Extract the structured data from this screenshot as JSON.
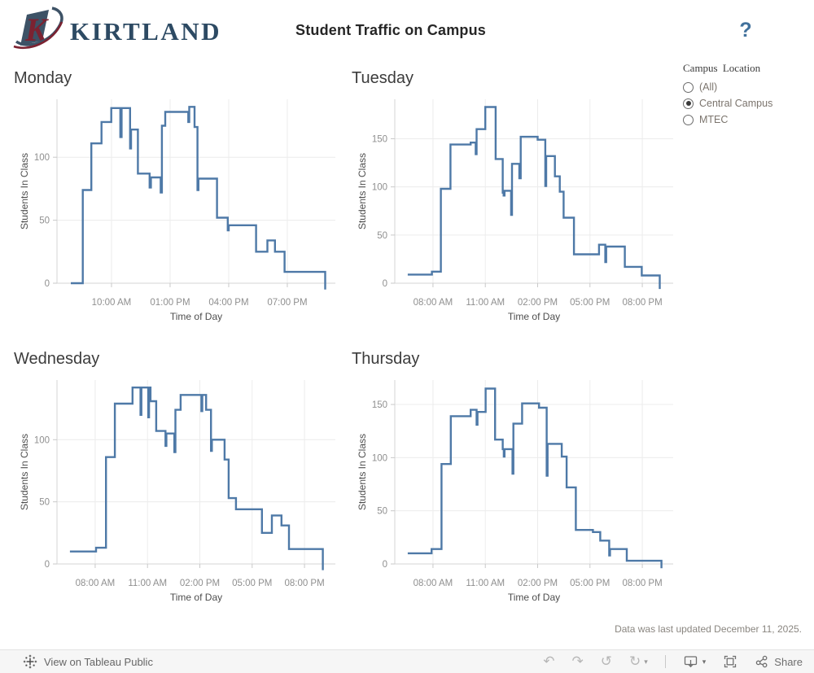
{
  "header": {
    "logo_text": "KIRTLAND",
    "title": "Student Traffic on Campus",
    "help_icon": "?"
  },
  "filter": {
    "title": "Campus Location",
    "options": [
      {
        "label": "(All)",
        "selected": false
      },
      {
        "label": "Central Campus",
        "selected": true
      },
      {
        "label": "MTEC",
        "selected": false
      }
    ]
  },
  "footer": {
    "updated_note": "Data was last updated December 11, 2025.",
    "view_on_label": "View on Tableau Public",
    "share_label": "Share"
  },
  "colors": {
    "line": "#4e79a7",
    "accent_blue": "#41719c",
    "logo_navy": "#33506a",
    "logo_maroon": "#7c2231",
    "grid": "#ececec",
    "axis": "#d6d6d6",
    "tick_label": "#8f8f8f"
  },
  "chart_data": [
    {
      "type": "line",
      "interpolation": "step-after",
      "title": "Monday",
      "xlabel": "Time of Day",
      "ylabel": "Students In Class",
      "x_ticks": [
        {
          "hour": 10,
          "label": "10:00 AM"
        },
        {
          "hour": 13,
          "label": "01:00 PM"
        },
        {
          "hour": 16,
          "label": "04:00 PM"
        },
        {
          "hour": 19,
          "label": "07:00 PM"
        }
      ],
      "y_ticks": [
        0,
        50,
        100
      ],
      "x_domain_hours": [
        7.21,
        21.46
      ],
      "y_max": 146,
      "points_hour_students": [
        [
          7.92,
          0
        ],
        [
          8.53,
          74
        ],
        [
          8.97,
          111
        ],
        [
          9.49,
          128
        ],
        [
          9.99,
          139
        ],
        [
          10.45,
          116
        ],
        [
          10.52,
          139
        ],
        [
          10.95,
          107
        ],
        [
          11.0,
          122
        ],
        [
          11.35,
          87
        ],
        [
          11.95,
          76
        ],
        [
          12.02,
          84
        ],
        [
          12.52,
          72
        ],
        [
          12.58,
          125
        ],
        [
          12.75,
          136
        ],
        [
          13.93,
          128
        ],
        [
          13.98,
          140
        ],
        [
          14.25,
          124
        ],
        [
          14.4,
          74
        ],
        [
          14.45,
          83
        ],
        [
          15.4,
          52
        ],
        [
          15.95,
          42
        ],
        [
          16.0,
          46
        ],
        [
          17.4,
          25
        ],
        [
          17.98,
          34
        ],
        [
          18.37,
          25
        ],
        [
          18.86,
          9
        ],
        [
          20.94,
          -5
        ]
      ]
    },
    {
      "type": "line",
      "interpolation": "step-after",
      "title": "Tuesday",
      "xlabel": "Time of Day",
      "ylabel": "Students In Class",
      "x_ticks": [
        {
          "hour": 8,
          "label": "08:00 AM"
        },
        {
          "hour": 11,
          "label": "11:00 AM"
        },
        {
          "hour": 14,
          "label": "02:00 PM"
        },
        {
          "hour": 17,
          "label": "05:00 PM"
        },
        {
          "hour": 20,
          "label": "08:00 PM"
        }
      ],
      "y_ticks": [
        0,
        50,
        100,
        150
      ],
      "x_domain_hours": [
        5.81,
        21.77
      ],
      "y_max": 191,
      "points_hour_students": [
        [
          6.55,
          9
        ],
        [
          7.94,
          12
        ],
        [
          8.45,
          98
        ],
        [
          9.0,
          144
        ],
        [
          10.16,
          146
        ],
        [
          10.45,
          134
        ],
        [
          10.5,
          160
        ],
        [
          11.0,
          183
        ],
        [
          11.59,
          129
        ],
        [
          12.0,
          94
        ],
        [
          12.05,
          91
        ],
        [
          12.1,
          96
        ],
        [
          12.48,
          71
        ],
        [
          12.53,
          124
        ],
        [
          12.95,
          109
        ],
        [
          13.03,
          152
        ],
        [
          14.0,
          149
        ],
        [
          14.44,
          101
        ],
        [
          14.49,
          132
        ],
        [
          14.99,
          111
        ],
        [
          15.27,
          95
        ],
        [
          15.49,
          68
        ],
        [
          16.08,
          30
        ],
        [
          17.52,
          40
        ],
        [
          17.88,
          22
        ],
        [
          17.93,
          38
        ],
        [
          19.0,
          17
        ],
        [
          19.97,
          8
        ],
        [
          21.0,
          -6
        ]
      ]
    },
    {
      "type": "line",
      "interpolation": "step-after",
      "title": "Wednesday",
      "xlabel": "Time of Day",
      "ylabel": "Students In Class",
      "x_ticks": [
        {
          "hour": 8,
          "label": "08:00 AM"
        },
        {
          "hour": 11,
          "label": "11:00 AM"
        },
        {
          "hour": 14,
          "label": "02:00 PM"
        },
        {
          "hour": 17,
          "label": "05:00 PM"
        },
        {
          "hour": 20,
          "label": "08:00 PM"
        }
      ],
      "y_ticks": [
        0,
        50,
        100
      ],
      "x_domain_hours": [
        5.81,
        21.77
      ],
      "y_max": 148,
      "points_hour_students": [
        [
          6.55,
          10
        ],
        [
          8.05,
          13
        ],
        [
          8.62,
          86
        ],
        [
          9.13,
          129
        ],
        [
          10.14,
          142
        ],
        [
          10.6,
          120
        ],
        [
          10.65,
          142
        ],
        [
          11.04,
          118
        ],
        [
          11.09,
          142
        ],
        [
          11.17,
          131
        ],
        [
          11.5,
          107
        ],
        [
          12.03,
          95
        ],
        [
          12.08,
          105
        ],
        [
          12.54,
          90
        ],
        [
          12.6,
          124
        ],
        [
          12.9,
          136
        ],
        [
          14.09,
          123
        ],
        [
          14.14,
          136
        ],
        [
          14.36,
          124
        ],
        [
          14.64,
          91
        ],
        [
          14.69,
          100
        ],
        [
          15.42,
          84
        ],
        [
          15.65,
          53
        ],
        [
          16.07,
          44
        ],
        [
          17.56,
          25
        ],
        [
          18.13,
          39
        ],
        [
          18.68,
          31
        ],
        [
          19.11,
          12
        ],
        [
          21.05,
          -5
        ]
      ]
    },
    {
      "type": "line",
      "interpolation": "step-after",
      "title": "Thursday",
      "xlabel": "Time of Day",
      "ylabel": "Students In Class",
      "x_ticks": [
        {
          "hour": 8,
          "label": "08:00 AM"
        },
        {
          "hour": 11,
          "label": "11:00 AM"
        },
        {
          "hour": 14,
          "label": "02:00 PM"
        },
        {
          "hour": 17,
          "label": "05:00 PM"
        },
        {
          "hour": 20,
          "label": "08:00 PM"
        }
      ],
      "y_ticks": [
        0,
        50,
        100,
        150
      ],
      "x_domain_hours": [
        5.81,
        21.77
      ],
      "y_max": 173,
      "points_hour_students": [
        [
          6.55,
          10
        ],
        [
          7.92,
          14
        ],
        [
          8.49,
          94
        ],
        [
          9.02,
          139
        ],
        [
          10.16,
          145
        ],
        [
          10.5,
          131
        ],
        [
          10.55,
          143
        ],
        [
          11.02,
          165
        ],
        [
          11.56,
          117
        ],
        [
          12.0,
          108
        ],
        [
          12.06,
          101
        ],
        [
          12.1,
          108
        ],
        [
          12.56,
          85
        ],
        [
          12.61,
          132
        ],
        [
          13.11,
          151
        ],
        [
          14.08,
          147
        ],
        [
          14.52,
          83
        ],
        [
          14.57,
          113
        ],
        [
          15.38,
          101
        ],
        [
          15.66,
          72
        ],
        [
          16.19,
          32
        ],
        [
          17.17,
          30
        ],
        [
          17.59,
          22
        ],
        [
          18.1,
          8
        ],
        [
          18.15,
          14
        ],
        [
          19.11,
          3
        ],
        [
          21.1,
          -4
        ]
      ]
    }
  ]
}
